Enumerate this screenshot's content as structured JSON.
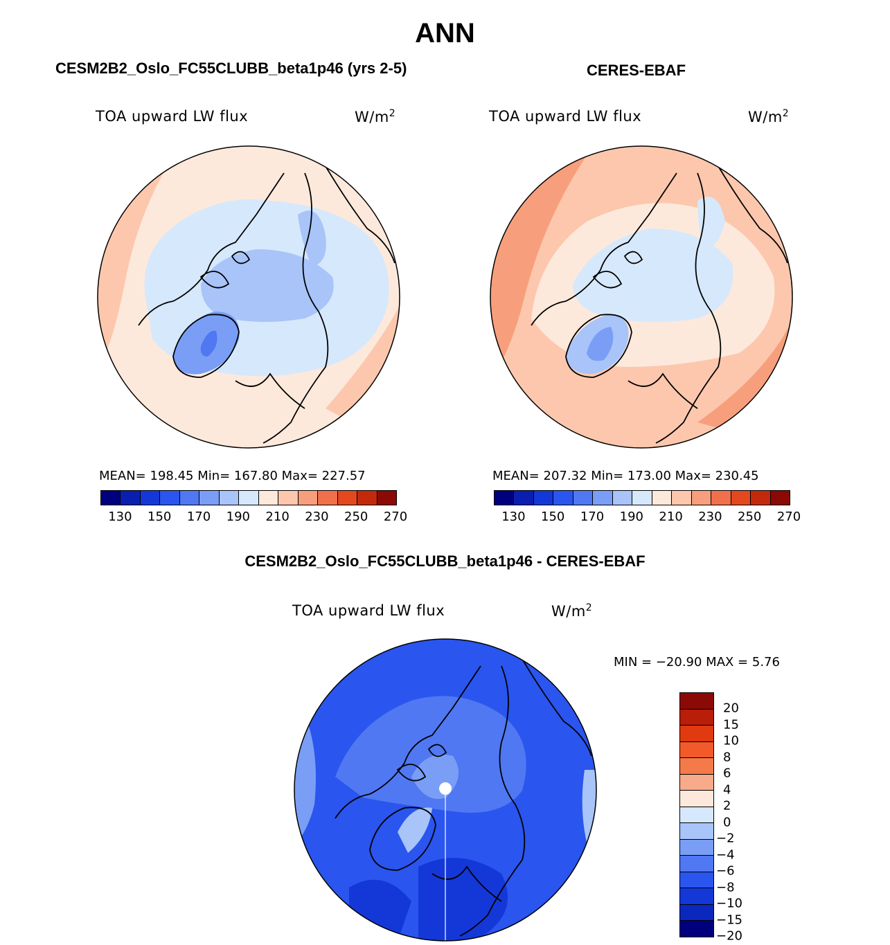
{
  "title": "ANN",
  "panels": [
    {
      "title": "CESM2B2_Oslo_FC55CLUBB_beta1p46 (yrs 2-5)",
      "variable": "TOA upward LW flux",
      "units_base": "W/m",
      "units_exp": "2",
      "stats": "MEAN= 198.45   Min= 167.80   Max= 227.57"
    },
    {
      "title": "CERES-EBAF",
      "variable": "TOA upward LW flux",
      "units_base": "W/m",
      "units_exp": "2",
      "stats": "MEAN= 207.32   Min= 173.00   Max= 230.45"
    }
  ],
  "abs_colorbar": {
    "colors": [
      "#00007f",
      "#0a1fb0",
      "#1438d8",
      "#2a55ee",
      "#4f78f2",
      "#7a9ef5",
      "#a8c4f8",
      "#d6e8fb",
      "#fde9db",
      "#fcc7ad",
      "#f79f7c",
      "#f0704c",
      "#e3481f",
      "#c32a0c",
      "#8c0a05"
    ],
    "labels": [
      "130",
      "150",
      "170",
      "190",
      "210",
      "230",
      "250",
      "270"
    ]
  },
  "diff_panel": {
    "title": "CESM2B2_Oslo_FC55CLUBB_beta1p46 - CERES-EBAF",
    "variable": "TOA upward LW flux",
    "units_base": "W/m",
    "units_exp": "2",
    "minmax": "MIN = −20.90 MAX =    5.76"
  },
  "diff_colorbar": {
    "colors": [
      "#8c0a05",
      "#b81e08",
      "#e03a10",
      "#f25a2a",
      "#f47a4a",
      "#f7ab8a",
      "#fde9db",
      "#d6e8fb",
      "#a8c4f8",
      "#7a9ef5",
      "#4f78f2",
      "#2a55ee",
      "#1438d8",
      "#0a28bd",
      "#00007f"
    ],
    "labels": [
      "20",
      "15",
      "10",
      "8",
      "6",
      "4",
      "2",
      "0",
      "−2",
      "−4",
      "−6",
      "−8",
      "−10",
      "−15",
      "−20"
    ]
  },
  "map_colors": {
    "ocean_warm": "#fde9db",
    "mid_warm": "#fcc7ad",
    "warm_edge": "#f79f7c",
    "arctic_light": "#d6e8fb",
    "arctic_mid": "#a8c4f8",
    "greenland": "#7a9ef5",
    "greenland_core": "#4f78f2",
    "diff_base": "#2a55ee",
    "diff_mid": "#4f78f2",
    "diff_deep": "#1438d8",
    "diff_light": "#a8c4f8"
  }
}
